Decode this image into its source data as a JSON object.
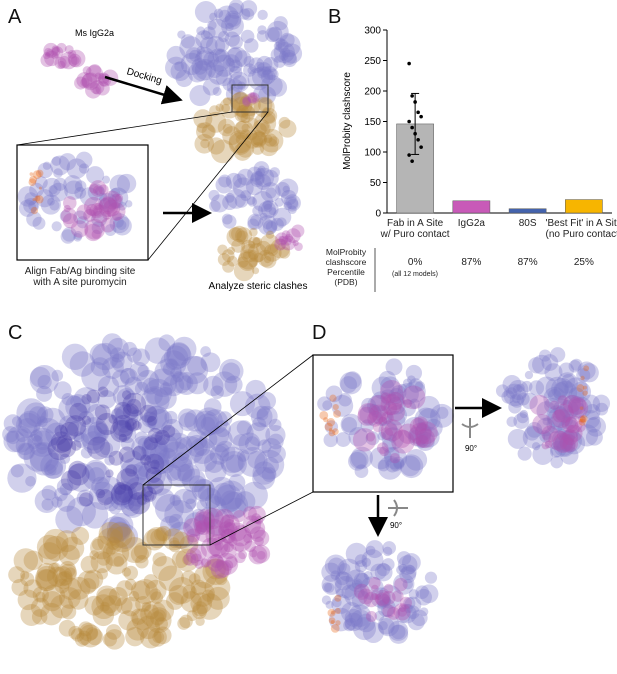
{
  "panels": {
    "a": "A",
    "b": "B",
    "c": "C",
    "d": "D"
  },
  "panel_a": {
    "antibody": "Ms IgG2a",
    "docking": "Docking",
    "align": "Align Fab/Ag binding site\nwith A site puromycin",
    "analyze": "Analyze steric clashes"
  },
  "panel_d": {
    "rotation_right": "90°",
    "rotation_down": "90°"
  },
  "chart_data": {
    "type": "bar",
    "y_label": "MolProbity clashscore",
    "categories": [
      "Fab in A Site\nw/ Puro contact",
      "IgG2a",
      "80S",
      "'Best Fit' in A Site\n(no Puro contact)"
    ],
    "values": [
      146,
      20,
      7,
      22
    ],
    "colors": [
      "#b5b5b5",
      "#c85ab8",
      "#4463ad",
      "#f7b500"
    ],
    "errors": [
      50,
      null,
      null,
      null
    ],
    "points": [
      245,
      192,
      182,
      165,
      158,
      150,
      140,
      130,
      120,
      108,
      95,
      85
    ],
    "ylim": [
      0,
      300
    ],
    "yticks": [
      0,
      50,
      100,
      150,
      200,
      250,
      300
    ]
  },
  "percentile_table": {
    "header": "MolProbity\nclashscore\nPercentile\n(PDB)",
    "cells": [
      "0%",
      "87%",
      "87%",
      "25%"
    ],
    "note": "(all 12 models)"
  }
}
